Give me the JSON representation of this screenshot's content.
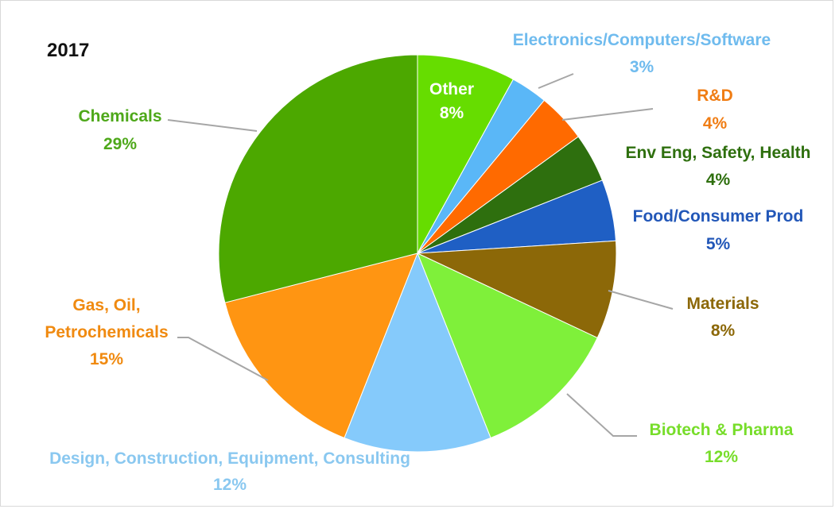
{
  "chart_data": {
    "type": "pie",
    "title": "2017",
    "slices": [
      {
        "name": "Other",
        "pct_label": "8%",
        "value": 8,
        "color": "#66dd00",
        "label_color": "#ffffff"
      },
      {
        "name": "Electronics/Computers/Software",
        "pct_label": "3%",
        "value": 3,
        "color": "#5ab7f7",
        "label_color": "#6fbbee"
      },
      {
        "name": "R&D",
        "pct_label": "4%",
        "value": 4,
        "color": "#ff6a00",
        "label_color": "#f07d14"
      },
      {
        "name": "Env Eng, Safety, Health",
        "pct_label": "4%",
        "value": 4,
        "color": "#2e6f0e",
        "label_color": "#2e6f0e"
      },
      {
        "name": "Food/Consumer Prod",
        "pct_label": "5%",
        "value": 5,
        "color": "#1f5fc4",
        "label_color": "#2257b8"
      },
      {
        "name": "Materials",
        "pct_label": "8%",
        "value": 8,
        "color": "#8c6808",
        "label_color": "#8c6808"
      },
      {
        "name": "Biotech & Pharma",
        "pct_label": "12%",
        "value": 12,
        "color": "#7ff03a",
        "label_color": "#77dd2a"
      },
      {
        "name": "Design, Construction, Equipment, Consulting",
        "pct_label": "12%",
        "value": 12,
        "color": "#85cafb",
        "label_color": "#8ac8f0"
      },
      {
        "name": "Gas, Oil, Petrochemicals",
        "pct_label": "15%",
        "value": 15,
        "color": "#ff9512",
        "label_color": "#f08a10"
      },
      {
        "name": "Chemicals",
        "pct_label": "29%",
        "value": 29,
        "color": "#4ca800",
        "label_color": "#4ea81a"
      }
    ]
  }
}
